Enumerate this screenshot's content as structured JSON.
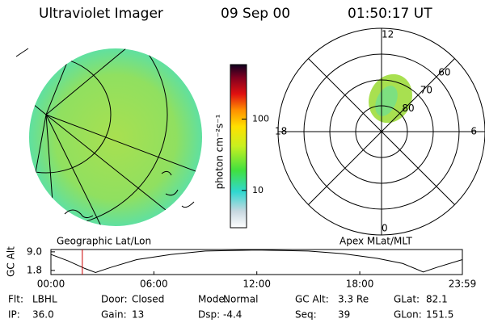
{
  "header": {
    "title": "Ultraviolet Imager",
    "date": "09 Sep 00",
    "time": "01:50:17 UT"
  },
  "colorbar": {
    "label": "photon cm⁻²s⁻¹",
    "scale": "log",
    "range": [
      3,
      580
    ],
    "ticks": [
      10,
      100
    ]
  },
  "left_panel": {
    "caption": "Geographic Lat/Lon"
  },
  "polar_plot": {
    "caption": "Apex MLat/MLT",
    "rlim": [
      90,
      50
    ],
    "rticks": [
      60,
      70,
      80
    ],
    "mlt_ticks": [
      0,
      6,
      12,
      18
    ]
  },
  "chart_data": {
    "type": "line",
    "y_label": "GC Alt",
    "x": [
      0,
      1,
      2,
      2.6,
      3.5,
      5,
      7,
      9,
      12,
      15,
      17,
      19,
      20.5,
      21.7,
      22.5,
      23.98
    ],
    "xlim": [
      0,
      23.98
    ],
    "xticks": [
      {
        "value": 0,
        "label": "00:00"
      },
      {
        "value": 6,
        "label": "06:00"
      },
      {
        "value": 12,
        "label": "12:00"
      },
      {
        "value": 18,
        "label": "18:00"
      },
      {
        "value": 23.98,
        "label": "23:59"
      }
    ],
    "series": [
      {
        "name": "GC Alt",
        "color": "#000000",
        "values": [
          8.0,
          5.5,
          2.5,
          1.0,
          3.0,
          6.0,
          8.0,
          9.3,
          9.7,
          9.3,
          8.3,
          6.5,
          4.5,
          1.2,
          3.0,
          6.0
        ]
      }
    ],
    "ylim": [
      0.2,
      9.9
    ],
    "yticks": [
      1.8,
      {
        "value": 9,
        "label": "9.0"
      }
    ],
    "current_time": 1.83,
    "current_color": "#cc0000"
  },
  "footer": {
    "rows": [
      [
        {
          "label": "Flt:",
          "value": "LBHL"
        },
        {
          "label": "Door:",
          "value": "Closed"
        },
        {
          "label": "Mode:",
          "value": "Normal"
        },
        {
          "label": "GC Alt:",
          "value": "3.3 Re"
        },
        {
          "label": "GLat:",
          "value": "82.1"
        }
      ],
      [
        {
          "label": "IP:",
          "value": "36.0"
        },
        {
          "label": "Gain:",
          "value": "13"
        },
        {
          "label": "Dsp:",
          "value": "-4.4"
        },
        {
          "label": "Seq:",
          "value": "39"
        },
        {
          "label": "GLon:",
          "value": "151.5"
        }
      ]
    ]
  }
}
